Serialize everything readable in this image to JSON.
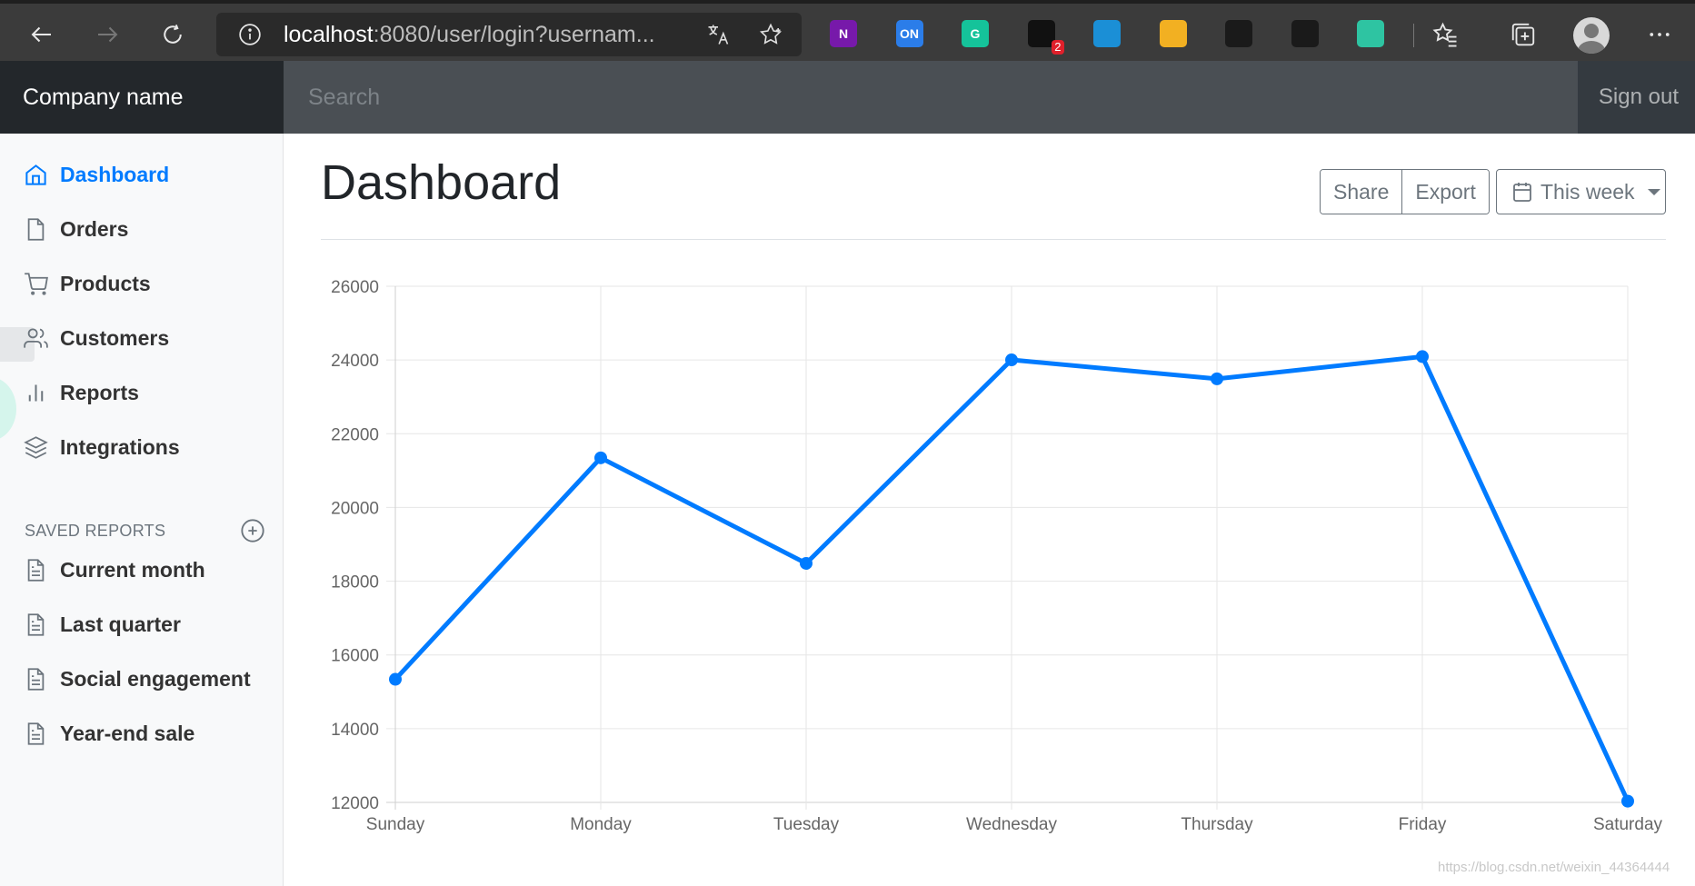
{
  "browser": {
    "address_host": "localhost",
    "address_rest": ":8080/user/login?usernam...",
    "extensions": [
      {
        "name": "onenote-icon",
        "label": "N",
        "color": "#7719aa"
      },
      {
        "name": "on-extension-icon",
        "label": "ON",
        "color": "#2b7de9"
      },
      {
        "name": "grammarly-icon",
        "label": "G",
        "color": "#15c39a"
      },
      {
        "name": "cam-extension-icon",
        "label": "",
        "color": "#111111",
        "badge": "2"
      },
      {
        "name": "cloud-extension-icon",
        "label": "",
        "color": "#1b8fd6"
      },
      {
        "name": "colorful-cube-icon",
        "label": "",
        "color": "#f2b022"
      },
      {
        "name": "sync-circle-icon",
        "label": "",
        "color": "#1a1a1a"
      },
      {
        "name": "link-chain-icon",
        "label": "",
        "color": "#1a1a1a"
      },
      {
        "name": "refresh-green-icon",
        "label": "",
        "color": "#2ec4a2"
      }
    ]
  },
  "navbar": {
    "brand": "Company name",
    "search_placeholder": "Search",
    "signout": "Sign out"
  },
  "sidebar": {
    "items": [
      {
        "label": "Dashboard",
        "active": true
      },
      {
        "label": "Orders"
      },
      {
        "label": "Products"
      },
      {
        "label": "Customers"
      },
      {
        "label": "Reports"
      },
      {
        "label": "Integrations"
      }
    ],
    "saved_heading": "SAVED REPORTS",
    "saved": [
      {
        "label": "Current month"
      },
      {
        "label": "Last quarter"
      },
      {
        "label": "Social engagement"
      },
      {
        "label": "Year-end sale"
      }
    ]
  },
  "main": {
    "title": "Dashboard",
    "share": "Share",
    "export": "Export",
    "week": "This week"
  },
  "chart_data": {
    "type": "line",
    "categories": [
      "Sunday",
      "Monday",
      "Tuesday",
      "Wednesday",
      "Thursday",
      "Friday",
      "Saturday"
    ],
    "values": [
      15339,
      21345,
      18483,
      24003,
      23489,
      24092,
      12034
    ],
    "ylim": [
      12000,
      26000
    ],
    "yticks": [
      "26000",
      "24000",
      "22000",
      "20000",
      "18000",
      "16000",
      "14000",
      "12000"
    ],
    "color": "#007bff",
    "grid": true
  },
  "watermark": "https://blog.csdn.net/weixin_44364444"
}
